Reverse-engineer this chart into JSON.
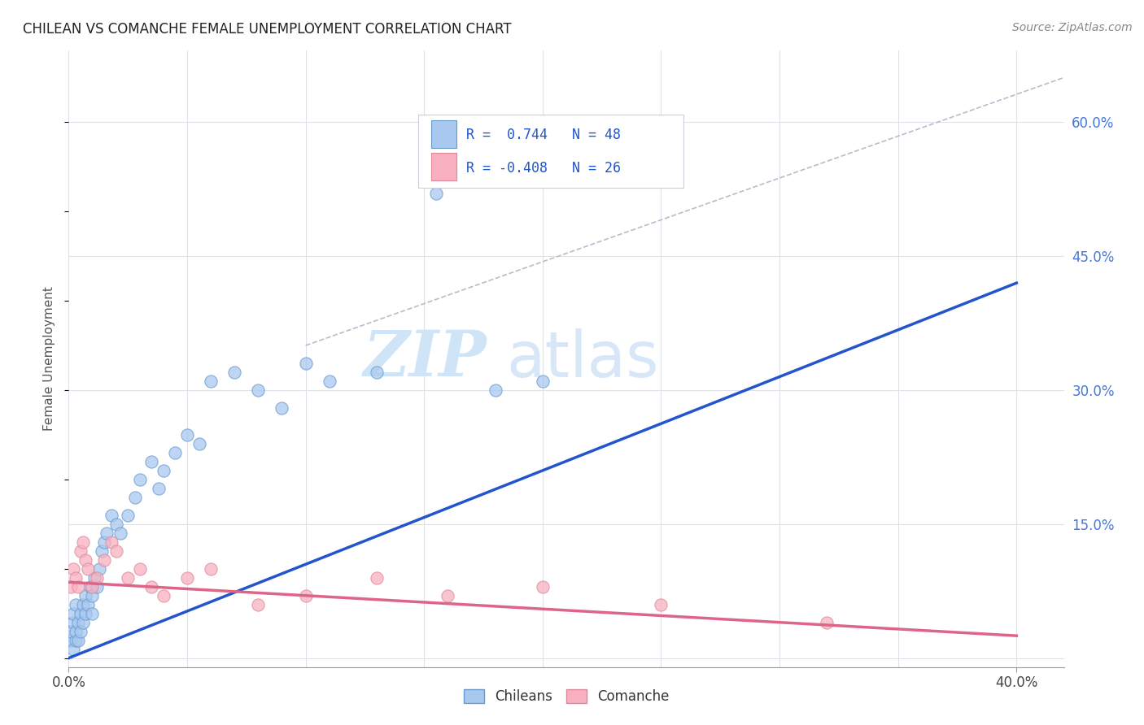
{
  "title": "CHILEAN VS COMANCHE FEMALE UNEMPLOYMENT CORRELATION CHART",
  "source": "Source: ZipAtlas.com",
  "ylabel": "Female Unemployment",
  "xlim": [
    0.0,
    0.42
  ],
  "ylim": [
    -0.01,
    0.68
  ],
  "grid_color": "#e0e0e8",
  "background_color": "#ffffff",
  "chilean_color": "#a8c8f0",
  "comanche_color": "#f8b0c0",
  "chilean_edge_color": "#6699cc",
  "comanche_edge_color": "#dd8898",
  "chilean_line_color": "#2255cc",
  "comanche_line_color": "#dd6688",
  "ref_line_color": "#bbbbcc",
  "legend_chilean": "R =  0.744   N = 48",
  "legend_comanche": "R = -0.408   N = 26",
  "watermark_zip": "ZIP",
  "watermark_atlas": "atlas",
  "watermark_color": "#d0e4f8",
  "chilean_x": [
    0.001,
    0.001,
    0.002,
    0.002,
    0.002,
    0.003,
    0.003,
    0.003,
    0.004,
    0.004,
    0.005,
    0.005,
    0.006,
    0.006,
    0.007,
    0.007,
    0.008,
    0.009,
    0.01,
    0.01,
    0.011,
    0.012,
    0.013,
    0.014,
    0.015,
    0.016,
    0.018,
    0.02,
    0.022,
    0.025,
    0.028,
    0.03,
    0.035,
    0.038,
    0.04,
    0.045,
    0.05,
    0.055,
    0.06,
    0.07,
    0.08,
    0.09,
    0.1,
    0.11,
    0.13,
    0.155,
    0.18,
    0.2
  ],
  "chilean_y": [
    0.02,
    0.03,
    0.01,
    0.04,
    0.05,
    0.02,
    0.06,
    0.03,
    0.04,
    0.02,
    0.05,
    0.03,
    0.04,
    0.06,
    0.05,
    0.07,
    0.06,
    0.08,
    0.07,
    0.05,
    0.09,
    0.08,
    0.1,
    0.12,
    0.13,
    0.14,
    0.16,
    0.15,
    0.14,
    0.16,
    0.18,
    0.2,
    0.22,
    0.19,
    0.21,
    0.23,
    0.25,
    0.24,
    0.31,
    0.32,
    0.3,
    0.28,
    0.33,
    0.31,
    0.32,
    0.52,
    0.3,
    0.31
  ],
  "comanche_x": [
    0.001,
    0.002,
    0.003,
    0.004,
    0.005,
    0.006,
    0.007,
    0.008,
    0.01,
    0.012,
    0.015,
    0.018,
    0.02,
    0.025,
    0.03,
    0.035,
    0.04,
    0.05,
    0.06,
    0.08,
    0.1,
    0.13,
    0.16,
    0.2,
    0.25,
    0.32
  ],
  "comanche_y": [
    0.08,
    0.1,
    0.09,
    0.08,
    0.12,
    0.13,
    0.11,
    0.1,
    0.08,
    0.09,
    0.11,
    0.13,
    0.12,
    0.09,
    0.1,
    0.08,
    0.07,
    0.09,
    0.1,
    0.06,
    0.07,
    0.09,
    0.07,
    0.08,
    0.06,
    0.04
  ],
  "chilean_line_x": [
    0.0,
    0.4
  ],
  "chilean_line_y": [
    0.0,
    0.42
  ],
  "comanche_line_x": [
    0.0,
    0.4
  ],
  "comanche_line_y": [
    0.085,
    0.025
  ],
  "ref_line_x": [
    0.1,
    0.42
  ],
  "ref_line_y": [
    0.35,
    0.65
  ]
}
